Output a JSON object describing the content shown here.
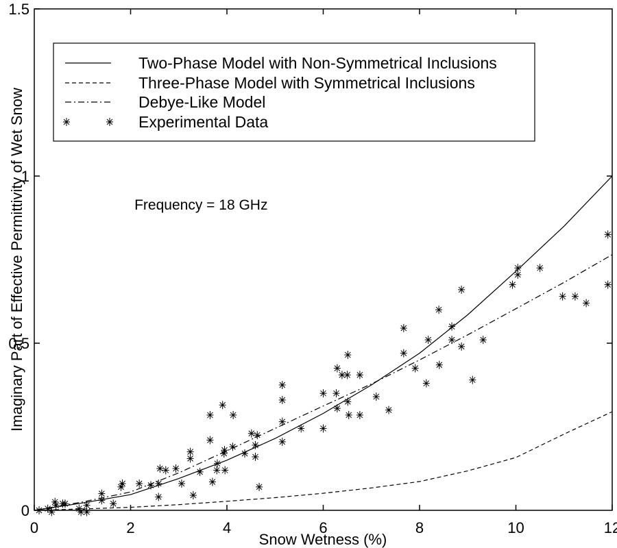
{
  "figure": {
    "background": "#ffffff",
    "line_color": "#000000"
  },
  "chart_data": {
    "type": "line",
    "title": "",
    "xlabel": "Snow Wetness (%)",
    "ylabel": "Imaginary Part of Effective Permittivity of Wet Snow",
    "xlim": [
      0,
      12
    ],
    "ylim": [
      0,
      1.5
    ],
    "x_ticks": [
      0,
      2,
      4,
      6,
      8,
      10,
      12
    ],
    "x_tick_labels": [
      "0",
      "2",
      "4",
      "6",
      "8",
      "10",
      "12"
    ],
    "y_ticks": [
      0,
      0.5,
      1,
      1.5
    ],
    "y_tick_labels": [
      "0",
      "0.5",
      "1",
      "1.5"
    ],
    "grid": false,
    "legend_position": "upper-left",
    "annotation": {
      "text": "Frequency = 18 GHz",
      "x": 2.08,
      "y": 0.9
    },
    "series": [
      {
        "name": "Two-Phase Model with Non-Symmetrical Inclusions",
        "style": "solid",
        "x": [
          0,
          1,
          2,
          3,
          4,
          5,
          6,
          7,
          8,
          9,
          10,
          11,
          12
        ],
        "y": [
          0,
          0.022,
          0.047,
          0.095,
          0.15,
          0.215,
          0.29,
          0.375,
          0.47,
          0.585,
          0.715,
          0.85,
          1.0
        ]
      },
      {
        "name": "Three-Phase Model with Symmetrical Inclusions",
        "style": "dashed",
        "x": [
          0,
          1,
          2,
          3,
          4,
          5,
          6,
          7,
          8,
          9,
          10,
          11,
          12
        ],
        "y": [
          0,
          0.004,
          0.009,
          0.017,
          0.027,
          0.038,
          0.051,
          0.067,
          0.086,
          0.118,
          0.158,
          0.228,
          0.295
        ]
      },
      {
        "name": "Debye-Like Model",
        "style": "dashdot",
        "x": [
          0,
          1,
          2,
          3,
          4,
          5,
          6,
          7,
          8,
          9,
          10,
          11,
          12
        ],
        "y": [
          0,
          0.025,
          0.055,
          0.112,
          0.178,
          0.245,
          0.312,
          0.378,
          0.45,
          0.525,
          0.603,
          0.682,
          0.765
        ]
      },
      {
        "name": "Experimental Data",
        "style": "asterisk-markers",
        "points": [
          [
            0.1,
            0.0
          ],
          [
            0.28,
            0.005
          ],
          [
            0.36,
            -0.005
          ],
          [
            0.43,
            0.025
          ],
          [
            0.45,
            0.015
          ],
          [
            0.59,
            0.02
          ],
          [
            0.64,
            0.02
          ],
          [
            0.93,
            0.005
          ],
          [
            0.97,
            -0.005
          ],
          [
            1.09,
            0.015
          ],
          [
            1.09,
            -0.005
          ],
          [
            1.4,
            0.05
          ],
          [
            1.4,
            0.03
          ],
          [
            1.64,
            0.02
          ],
          [
            1.8,
            0.07
          ],
          [
            1.83,
            0.08
          ],
          [
            2.18,
            0.08
          ],
          [
            2.42,
            0.075
          ],
          [
            2.58,
            0.08
          ],
          [
            2.58,
            0.04
          ],
          [
            2.61,
            0.125
          ],
          [
            2.73,
            0.12
          ],
          [
            2.94,
            0.125
          ],
          [
            3.06,
            0.08
          ],
          [
            3.24,
            0.175
          ],
          [
            3.24,
            0.155
          ],
          [
            3.3,
            0.045
          ],
          [
            3.44,
            0.115
          ],
          [
            3.65,
            0.285
          ],
          [
            3.65,
            0.21
          ],
          [
            3.7,
            0.085
          ],
          [
            3.79,
            0.12
          ],
          [
            3.8,
            0.14
          ],
          [
            3.91,
            0.315
          ],
          [
            3.94,
            0.17
          ],
          [
            3.95,
            0.18
          ],
          [
            3.96,
            0.12
          ],
          [
            4.12,
            0.19
          ],
          [
            4.13,
            0.285
          ],
          [
            4.37,
            0.17
          ],
          [
            4.51,
            0.23
          ],
          [
            4.59,
            0.195
          ],
          [
            4.59,
            0.16
          ],
          [
            4.63,
            0.225
          ],
          [
            4.67,
            0.07
          ],
          [
            5.15,
            0.375
          ],
          [
            5.15,
            0.33
          ],
          [
            5.15,
            0.265
          ],
          [
            5.15,
            0.205
          ],
          [
            5.54,
            0.245
          ],
          [
            6.0,
            0.35
          ],
          [
            6.0,
            0.245
          ],
          [
            6.27,
            0.35
          ],
          [
            6.29,
            0.425
          ],
          [
            6.29,
            0.305
          ],
          [
            6.39,
            0.405
          ],
          [
            6.5,
            0.405
          ],
          [
            6.51,
            0.465
          ],
          [
            6.51,
            0.325
          ],
          [
            6.53,
            0.285
          ],
          [
            6.76,
            0.405
          ],
          [
            6.76,
            0.285
          ],
          [
            7.1,
            0.34
          ],
          [
            7.36,
            0.3
          ],
          [
            7.67,
            0.545
          ],
          [
            7.67,
            0.47
          ],
          [
            7.91,
            0.425
          ],
          [
            8.14,
            0.38
          ],
          [
            8.18,
            0.51
          ],
          [
            8.4,
            0.6
          ],
          [
            8.41,
            0.435
          ],
          [
            8.67,
            0.55
          ],
          [
            8.67,
            0.51
          ],
          [
            8.87,
            0.66
          ],
          [
            8.87,
            0.49
          ],
          [
            9.1,
            0.39
          ],
          [
            9.32,
            0.51
          ],
          [
            9.93,
            0.675
          ],
          [
            10.04,
            0.725
          ],
          [
            10.04,
            0.705
          ],
          [
            10.5,
            0.725
          ],
          [
            10.97,
            0.64
          ],
          [
            11.23,
            0.64
          ],
          [
            11.46,
            0.62
          ],
          [
            11.91,
            0.825
          ],
          [
            11.91,
            0.675
          ]
        ]
      }
    ]
  }
}
